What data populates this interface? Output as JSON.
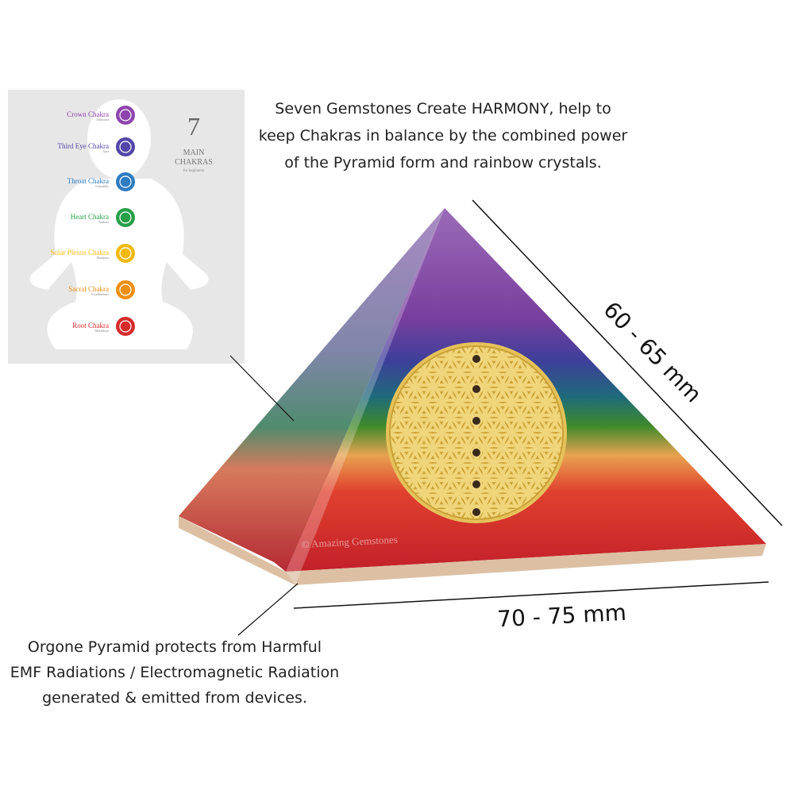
{
  "chakra_chart": {
    "count": "7",
    "heading": "MAIN",
    "subheading": "CHAKRAS",
    "note": "for beginners",
    "chakras": [
      {
        "name": "Crown Chakra",
        "sanskrit": "Sahasrara"
      },
      {
        "name": "Third Eye Chakra",
        "sanskrit": "Ajna"
      },
      {
        "name": "Throat Chakra",
        "sanskrit": "Vishuddha"
      },
      {
        "name": "Heart Chakra",
        "sanskrit": "Anahata"
      },
      {
        "name": "Solar Plexus Chakra",
        "sanskrit": "Manipura"
      },
      {
        "name": "Sacral Chakra",
        "sanskrit": "Swadhisthana"
      },
      {
        "name": "Root Chakra",
        "sanskrit": "Muladhara"
      }
    ]
  },
  "description_top": [
    "Seven Gemstones Create HARMONY, help to",
    "keep Chakras in balance by the combined power",
    "of the Pyramid form and rainbow crystals."
  ],
  "height_label": "60 - 65 mm",
  "width_label": "70 - 75 mm",
  "description_bottom": [
    "Orgone Pyramid protects from Harmful",
    "EMF Radiations / Electromagnetic Radiation",
    "generated & emitted from devices."
  ],
  "watermark": "© Amazing Gemstones"
}
